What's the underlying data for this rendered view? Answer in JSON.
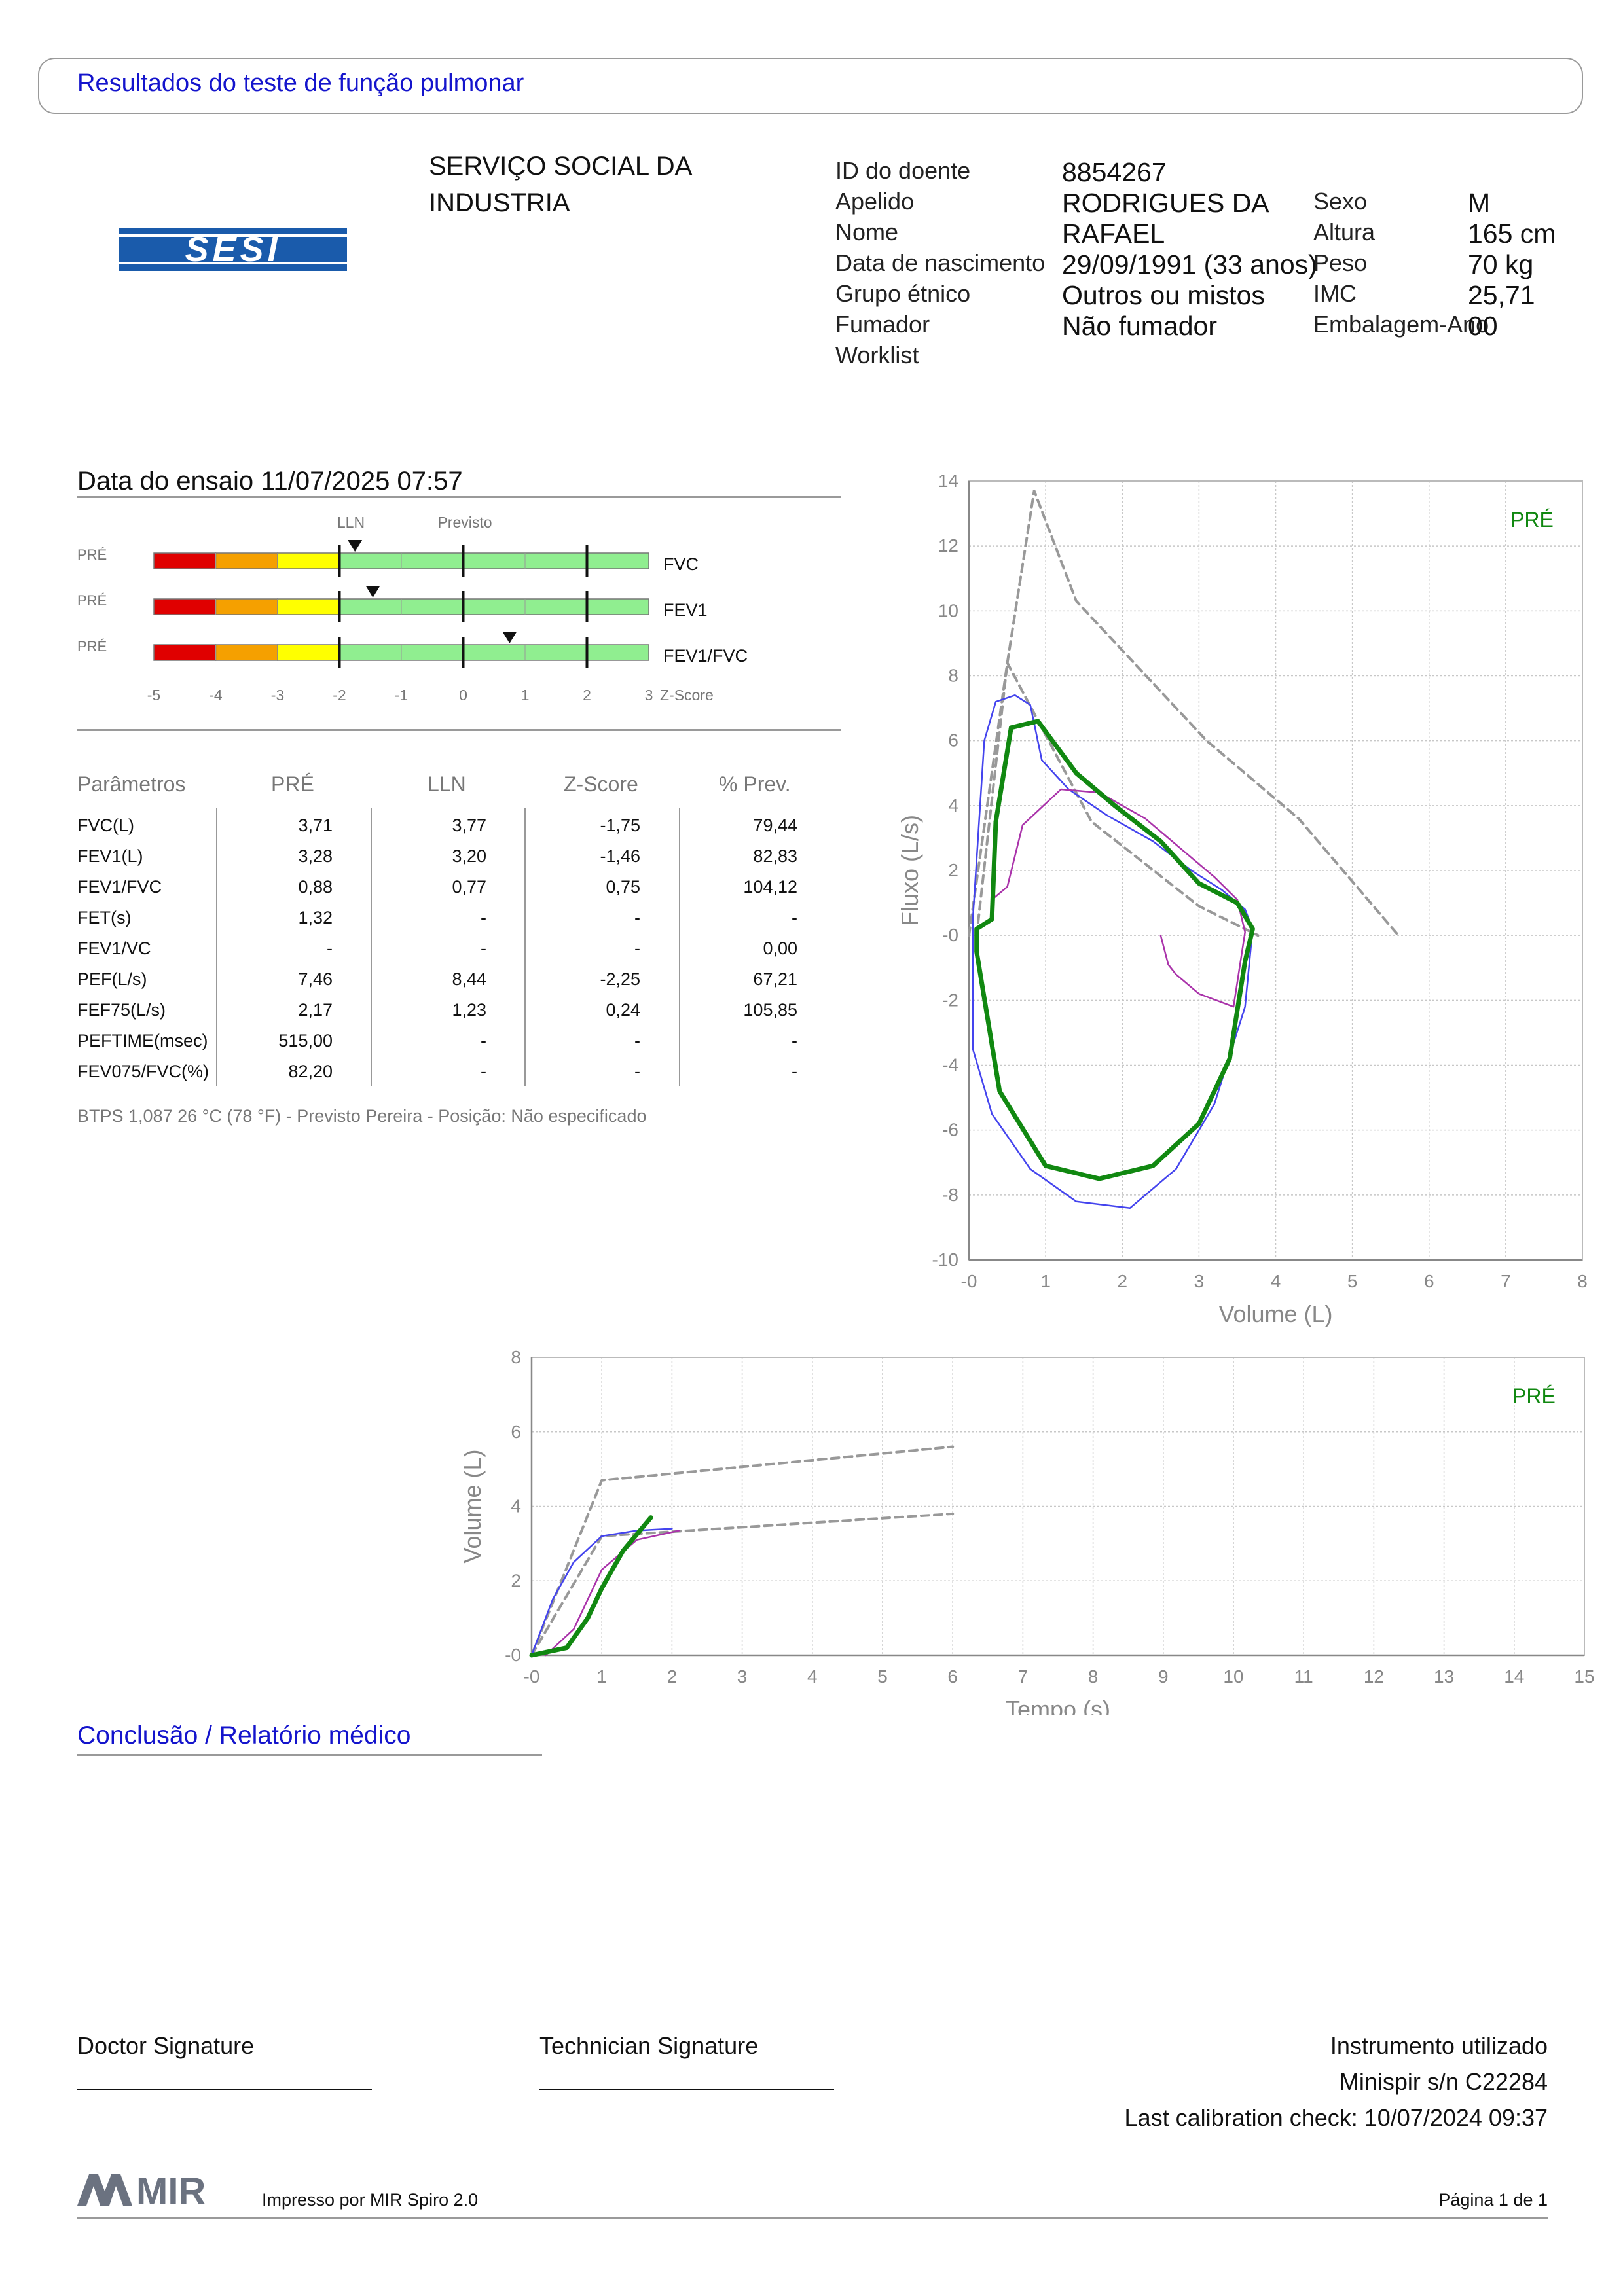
{
  "header": {
    "title": "Resultados do teste de função pulmonar"
  },
  "logo": {
    "text": "SESI",
    "color": "#1a5bab"
  },
  "organization": {
    "line1": "SERVIÇO SOCIAL DA",
    "line2": "INDUSTRIA"
  },
  "patient": {
    "id_label": "ID do doente",
    "id_value": "8854267",
    "surname_label": "Apelido",
    "surname_value": "RODRIGUES DA",
    "name_label": "Nome",
    "name_value": "RAFAEL",
    "dob_label": "Data de nascimento",
    "dob_value": "29/09/1991 (33 anos)",
    "ethnic_label": "Grupo étnico",
    "ethnic_value": "Outros ou mistos",
    "smoker_label": "Fumador",
    "smoker_value": "Não fumador",
    "worklist_label": "Worklist",
    "sex_label": "Sexo",
    "sex_value": "M",
    "height_label": "Altura",
    "height_value": "165 cm",
    "weight_label": "Peso",
    "weight_value": "70 kg",
    "bmi_label": "IMC",
    "bmi_value": "25,71",
    "packyears_label": "Embalagem-Ano",
    "packyears_value": "00"
  },
  "test": {
    "date_label": "Data do ensaio 11/07/2025 07:57"
  },
  "zscore_panel": {
    "lln_label": "LLN",
    "predicted_label": "Previsto",
    "axis_label": "Z-Score",
    "ticks": [
      "-5",
      "-4",
      "-3",
      "-2",
      "-1",
      "0",
      "1",
      "2",
      "3"
    ],
    "rows": [
      {
        "tag": "PRÉ",
        "name": "FVC",
        "z": -1.75
      },
      {
        "tag": "PRÉ",
        "name": "FEV1",
        "z": -1.46
      },
      {
        "tag": "PRÉ",
        "name": "FEV1/FVC",
        "z": 0.75
      }
    ],
    "colors": {
      "red": "#e00000",
      "orange": "#f5a000",
      "yellow": "#ffff00",
      "green": "#90ee90"
    }
  },
  "table": {
    "headers": [
      "Parâmetros",
      "PRÉ",
      "LLN",
      "Z-Score",
      "% Prev."
    ],
    "rows": [
      [
        "FVC(L)",
        "3,71",
        "3,77",
        "-1,75",
        "79,44"
      ],
      [
        "FEV1(L)",
        "3,28",
        "3,20",
        "-1,46",
        "82,83"
      ],
      [
        "FEV1/FVC",
        "0,88",
        "0,77",
        "0,75",
        "104,12"
      ],
      [
        "FET(s)",
        "1,32",
        "-",
        "-",
        "-"
      ],
      [
        "FEV1/VC",
        "-",
        "-",
        "-",
        "0,00"
      ],
      [
        "PEF(L/s)",
        "7,46",
        "8,44",
        "-2,25",
        "67,21"
      ],
      [
        "FEF75(L/s)",
        "2,17",
        "1,23",
        "0,24",
        "105,85"
      ],
      [
        "PEFTIME(msec)",
        "515,00",
        "-",
        "-",
        "-"
      ],
      [
        "FEV075/FVC(%)",
        "82,20",
        "-",
        "-",
        "-"
      ]
    ],
    "footnote": "BTPS 1,087 26 °C (78 °F) - Previsto Pereira - Posição: Não especificado"
  },
  "chart_data": [
    {
      "type": "line",
      "xlabel": "Volume (L)",
      "ylabel": "Fluxo (L/s)",
      "xlim": [
        0,
        8
      ],
      "ylim": [
        -10,
        14
      ],
      "x_ticks": [
        "-0",
        "1",
        "2",
        "3",
        "4",
        "5",
        "6",
        "7",
        "8"
      ],
      "y_ticks": [
        "-10",
        "-8",
        "-6",
        "-4",
        "-2",
        "-0",
        "2",
        "4",
        "6",
        "8",
        "10",
        "12",
        "14"
      ],
      "annotation": "PRÉ",
      "series": [
        {
          "color": "#999999",
          "dashed": true,
          "points": [
            [
              0.1,
              0
            ],
            [
              0.5,
              8.4
            ],
            [
              0.85,
              13.7
            ],
            [
              1.4,
              10.3
            ],
            [
              3.1,
              6.0
            ],
            [
              4.3,
              3.6
            ],
            [
              5.6,
              0
            ]
          ]
        },
        {
          "color": "#999999",
          "dashed": true,
          "points": [
            [
              0,
              0
            ],
            [
              0.5,
              8.4
            ],
            [
              1.6,
              3.5
            ],
            [
              3.0,
              0.9
            ],
            [
              3.77,
              0
            ]
          ]
        },
        {
          "color": "#4444ee",
          "dashed": false,
          "points": [
            [
              0.05,
              0.5
            ],
            [
              0.2,
              6
            ],
            [
              0.35,
              7.2
            ],
            [
              0.6,
              7.4
            ],
            [
              0.8,
              7.1
            ],
            [
              0.95,
              5.4
            ],
            [
              1.3,
              4.5
            ],
            [
              1.8,
              3.7
            ],
            [
              2.4,
              2.9
            ],
            [
              2.9,
              2.0
            ],
            [
              3.3,
              1.4
            ],
            [
              3.6,
              0.8
            ],
            [
              3.7,
              0.2
            ],
            [
              3.6,
              -2.2
            ],
            [
              3.2,
              -5.2
            ],
            [
              2.7,
              -7.2
            ],
            [
              2.1,
              -8.4
            ],
            [
              1.4,
              -8.2
            ],
            [
              0.8,
              -7.2
            ],
            [
              0.3,
              -5.5
            ],
            [
              0.05,
              -3.5
            ],
            [
              0.05,
              0.5
            ]
          ]
        },
        {
          "color": "#aa33aa",
          "dashed": false,
          "points": [
            [
              0.3,
              1.1
            ],
            [
              0.5,
              1.5
            ],
            [
              0.7,
              3.4
            ],
            [
              1.2,
              4.5
            ],
            [
              1.7,
              4.4
            ],
            [
              2.3,
              3.6
            ],
            [
              2.8,
              2.6
            ],
            [
              3.2,
              1.8
            ],
            [
              3.5,
              1.1
            ],
            [
              3.6,
              0.1
            ],
            [
              3.45,
              -2.2
            ],
            [
              3.0,
              -1.8
            ],
            [
              2.7,
              -1.2
            ],
            [
              2.6,
              -0.9
            ],
            [
              2.5,
              0.0
            ]
          ]
        },
        {
          "color": "#118811",
          "dashed": false,
          "bold": true,
          "points": [
            [
              0.1,
              0.2
            ],
            [
              0.3,
              0.5
            ],
            [
              0.35,
              3.5
            ],
            [
              0.55,
              6.4
            ],
            [
              0.9,
              6.6
            ],
            [
              1.4,
              5.0
            ],
            [
              1.9,
              4.0
            ],
            [
              2.5,
              2.9
            ],
            [
              3.0,
              1.6
            ],
            [
              3.5,
              1.0
            ],
            [
              3.7,
              0.2
            ],
            [
              3.6,
              -0.8
            ],
            [
              3.4,
              -3.8
            ],
            [
              3.0,
              -5.8
            ],
            [
              2.4,
              -7.1
            ],
            [
              1.7,
              -7.5
            ],
            [
              1.0,
              -7.1
            ],
            [
              0.4,
              -4.8
            ],
            [
              0.1,
              -0.5
            ],
            [
              0.1,
              0.2
            ]
          ]
        }
      ]
    },
    {
      "type": "line",
      "xlabel": "Tempo (s)",
      "ylabel": "Volume (L)",
      "xlim": [
        0,
        15
      ],
      "ylim": [
        0,
        8
      ],
      "x_ticks": [
        "-0",
        "1",
        "2",
        "3",
        "4",
        "5",
        "6",
        "7",
        "8",
        "9",
        "10",
        "11",
        "12",
        "13",
        "14",
        "15"
      ],
      "y_ticks": [
        "-0",
        "2",
        "4",
        "6",
        "8"
      ],
      "annotation": "PRÉ",
      "series": [
        {
          "color": "#999999",
          "dashed": true,
          "points": [
            [
              0,
              0
            ],
            [
              1,
              4.7
            ],
            [
              6,
              5.6
            ]
          ]
        },
        {
          "color": "#999999",
          "dashed": true,
          "points": [
            [
              0,
              0
            ],
            [
              1,
              3.2
            ],
            [
              6,
              3.8
            ]
          ]
        },
        {
          "color": "#4444ee",
          "dashed": false,
          "points": [
            [
              0,
              0
            ],
            [
              0.3,
              1.5
            ],
            [
              0.6,
              2.5
            ],
            [
              1,
              3.2
            ],
            [
              1.5,
              3.35
            ],
            [
              2,
              3.4
            ]
          ]
        },
        {
          "color": "#aa33aa",
          "dashed": false,
          "points": [
            [
              0.2,
              0
            ],
            [
              0.6,
              0.7
            ],
            [
              1,
              2.3
            ],
            [
              1.5,
              3.1
            ],
            [
              2.1,
              3.35
            ]
          ]
        },
        {
          "color": "#118811",
          "dashed": false,
          "bold": true,
          "points": [
            [
              0,
              0
            ],
            [
              0.5,
              0.2
            ],
            [
              0.8,
              1.0
            ],
            [
              1.0,
              1.8
            ],
            [
              1.3,
              2.8
            ],
            [
              1.7,
              3.7
            ]
          ]
        }
      ]
    }
  ],
  "conclusion": {
    "title": "Conclusão / Relatório médico"
  },
  "signatures": {
    "doctor": "Doctor Signature",
    "technician": "Technician Signature"
  },
  "instrument": {
    "label": "Instrumento utilizado",
    "device": "Minispir s/n C22284",
    "calibration": "Last calibration check: 10/07/2024 09:37"
  },
  "footer": {
    "brand": "MIR",
    "printed_by": "Impresso por MIR Spiro 2.0",
    "page": "Página 1 de 1"
  }
}
